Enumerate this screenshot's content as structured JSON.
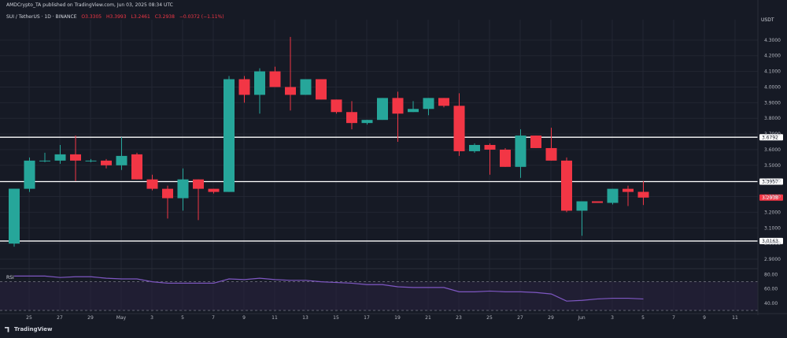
{
  "header": {
    "publisher_line": "AMDCrypto_TA published on TradingView.com, Jun 03, 2025 08:34 UTC"
  },
  "symbol_bar": {
    "title": "SUI / TetherUS · 1D · BINANCE",
    "open": "O3.3305",
    "high": "H3.3993",
    "low": "L3.2461",
    "close": "C3.2938",
    "change": "−0.0372 (−1.11%)"
  },
  "currency": "USDT",
  "rsi_label": "RSI",
  "brand": "TradingView",
  "colors": {
    "background": "#161a25",
    "up": "#26a69a",
    "down": "#f23645",
    "rsi_line": "#7e57c2",
    "rsi_band": "#2a2340",
    "grid": "#222632",
    "level_line": "#ffffff"
  },
  "chart_data": [
    {
      "type": "candlestick",
      "title": "SUI / TetherUS · 1D · BINANCE",
      "ylim": [
        2.87,
        4.43
      ],
      "y_ticks": [
        "4.3000",
        "4.2000",
        "4.1000",
        "4.0000",
        "3.9000",
        "3.8000",
        "3.7000",
        "3.6000",
        "3.5000",
        "3.4000",
        "3.3000",
        "3.2000",
        "3.1000",
        "3.0000",
        "2.9000"
      ],
      "x_ticks": [
        "25",
        "27",
        "29",
        "May",
        "3",
        "5",
        "7",
        "9",
        "11",
        "13",
        "15",
        "17",
        "19",
        "21",
        "23",
        "25",
        "27",
        "29",
        "Jun",
        "3",
        "5",
        "7",
        "9",
        "11"
      ],
      "grid": true,
      "horizontal_levels": [
        {
          "price": 3.6792,
          "label": "3.6792"
        },
        {
          "price": 3.3957,
          "label": "3.3957"
        },
        {
          "price": 3.0163,
          "label": "3.0163"
        }
      ],
      "last_price": {
        "price": 3.2938,
        "label": "3.2938"
      },
      "candles": [
        [
          3.0,
          3.3505,
          2.98,
          3.3505
        ],
        [
          3.35,
          3.55,
          3.33,
          3.53
        ],
        [
          3.53,
          3.58,
          3.52,
          3.53
        ],
        [
          3.53,
          3.63,
          3.51,
          3.57
        ],
        [
          3.57,
          3.69,
          3.4,
          3.53
        ],
        [
          3.53,
          3.54,
          3.52,
          3.53
        ],
        [
          3.53,
          3.54,
          3.48,
          3.5
        ],
        [
          3.5,
          3.68,
          3.47,
          3.56
        ],
        [
          3.57,
          3.58,
          3.41,
          3.41
        ],
        [
          3.41,
          3.44,
          3.34,
          3.35
        ],
        [
          3.35,
          3.37,
          3.16,
          3.29
        ],
        [
          3.29,
          3.48,
          3.21,
          3.41
        ],
        [
          3.41,
          3.41,
          3.15,
          3.35
        ],
        [
          3.35,
          3.35,
          3.32,
          3.33
        ],
        [
          3.33,
          4.07,
          3.33,
          4.05
        ],
        [
          4.05,
          4.07,
          3.9,
          3.95
        ],
        [
          3.95,
          4.12,
          3.83,
          4.1
        ],
        [
          4.1,
          4.13,
          4.0,
          4.0
        ],
        [
          4.0,
          4.32,
          3.85,
          3.95
        ],
        [
          3.95,
          4.05,
          3.95,
          4.05
        ],
        [
          4.05,
          4.05,
          3.92,
          3.92
        ],
        [
          3.92,
          3.92,
          3.83,
          3.84
        ],
        [
          3.84,
          3.91,
          3.73,
          3.77
        ],
        [
          3.77,
          3.79,
          3.76,
          3.79
        ],
        [
          3.79,
          3.93,
          3.79,
          3.93
        ],
        [
          3.93,
          3.97,
          3.65,
          3.83
        ],
        [
          3.84,
          3.91,
          3.84,
          3.86
        ],
        [
          3.86,
          3.93,
          3.82,
          3.93
        ],
        [
          3.93,
          3.93,
          3.87,
          3.88
        ],
        [
          3.88,
          3.96,
          3.56,
          3.59
        ],
        [
          3.59,
          3.64,
          3.58,
          3.63
        ],
        [
          3.63,
          3.64,
          3.44,
          3.6
        ],
        [
          3.6,
          3.61,
          3.49,
          3.49
        ],
        [
          3.49,
          3.73,
          3.42,
          3.69
        ],
        [
          3.69,
          3.69,
          3.61,
          3.61
        ],
        [
          3.61,
          3.74,
          3.53,
          3.53
        ],
        [
          3.53,
          3.55,
          3.2,
          3.21
        ],
        [
          3.21,
          3.27,
          3.05,
          3.27
        ],
        [
          3.27,
          3.27,
          3.26,
          3.26
        ],
        [
          3.26,
          3.35,
          3.25,
          3.35
        ],
        [
          3.35,
          3.37,
          3.24,
          3.33
        ],
        [
          3.3305,
          3.3993,
          3.2461,
          3.2938
        ]
      ]
    },
    {
      "type": "line",
      "title": "RSI",
      "ylim": [
        30,
        85
      ],
      "y_ticks": [
        "80.00",
        "60.00",
        "40.00"
      ],
      "band": [
        30,
        70
      ],
      "series": [
        {
          "values": [
            78,
            78,
            78,
            76,
            77,
            77,
            75,
            74,
            74,
            70,
            68,
            68,
            68,
            68,
            74,
            73,
            75,
            73,
            72,
            72,
            70,
            69,
            68,
            66,
            66,
            63,
            62,
            62,
            62,
            56,
            56,
            57,
            56,
            56,
            55,
            53,
            43,
            44,
            46,
            47,
            47,
            46
          ]
        }
      ]
    }
  ]
}
